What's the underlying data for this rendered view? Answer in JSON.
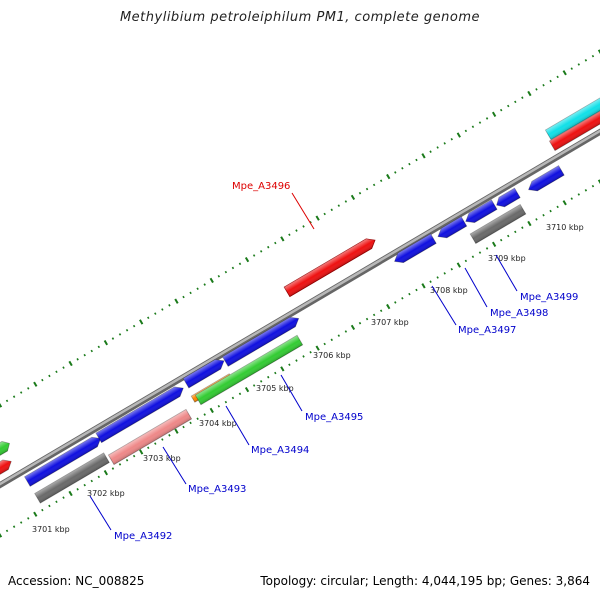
{
  "title": "Methylibium petroleiphilum PM1, complete genome",
  "footer": {
    "accession": "Accession: NC_008825",
    "summary": "Topology: circular; Length: 4,044,195 bp; Genes: 3,864"
  },
  "colors": {
    "backbone": "#8a8a8a",
    "tick": "#1a7a1a",
    "label_normal": "#0000cc",
    "label_selected": "#dd0000",
    "gene_blue": "#1010e0",
    "gene_red": "#ee1111",
    "gene_green": "#33cc33",
    "gene_gray": "#6a6a6a",
    "gene_pink": "#ee8888",
    "gene_orange": "#ff8800",
    "gene_cyan": "#11e0e8"
  },
  "kbp_labels": [
    "3701 kbp",
    "3702 kbp",
    "3703 kbp",
    "3704 kbp",
    "3705 kbp",
    "3706 kbp",
    "3707 kbp",
    "3708 kbp",
    "3709 kbp",
    "3710 kbp"
  ],
  "gene_labels": [
    {
      "name": "Mpe_A3492",
      "selected": false
    },
    {
      "name": "Mpe_A3493",
      "selected": false
    },
    {
      "name": "Mpe_A3494",
      "selected": false
    },
    {
      "name": "Mpe_A3495",
      "selected": false
    },
    {
      "name": "Mpe_A3496",
      "selected": true
    },
    {
      "name": "Mpe_A3497",
      "selected": false
    },
    {
      "name": "Mpe_A3498",
      "selected": false
    },
    {
      "name": "Mpe_A3499",
      "selected": false
    }
  ]
}
